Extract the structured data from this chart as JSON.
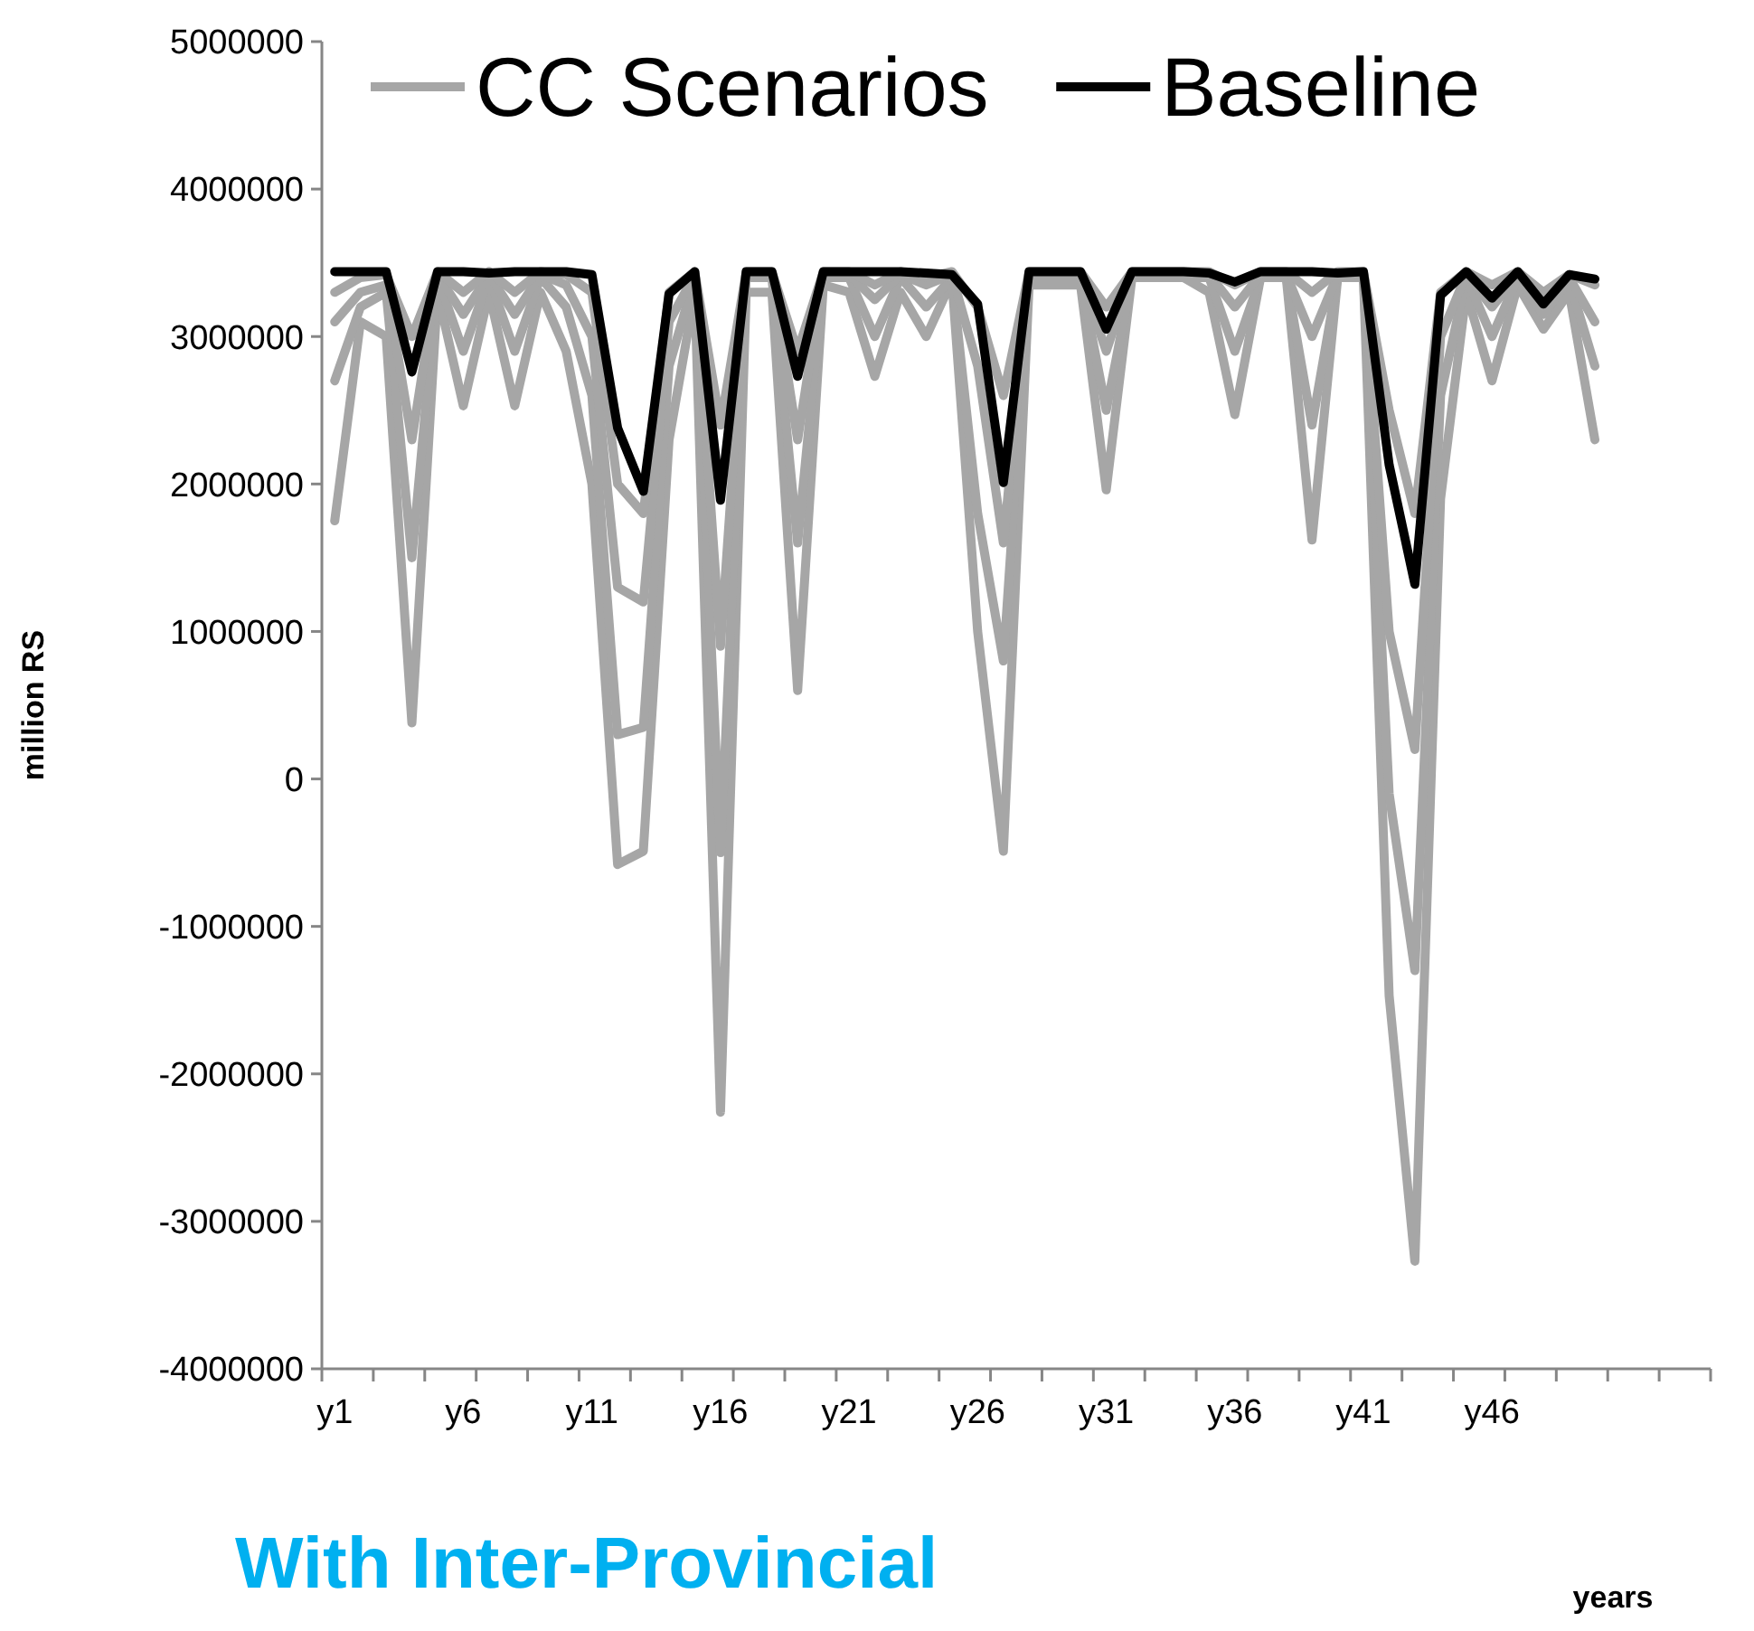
{
  "chart_data": {
    "type": "line",
    "ylabel": "million RS",
    "xlabel": "years",
    "annotations": [
      "With Inter-Provincial"
    ],
    "categories": [
      "y1",
      null,
      null,
      null,
      null,
      "y6",
      null,
      null,
      null,
      null,
      "y11",
      null,
      null,
      null,
      null,
      "y16",
      null,
      null,
      null,
      null,
      "y21",
      null,
      null,
      null,
      null,
      "y26",
      null,
      null,
      null,
      null,
      "y31",
      null,
      null,
      null,
      null,
      "y36",
      null,
      null,
      null,
      null,
      "y41",
      null,
      null,
      null,
      null,
      "y46",
      null,
      null,
      null,
      null,
      null,
      null,
      null,
      null
    ],
    "ylim": [
      -4000000,
      5000000
    ],
    "yticks": [
      -4000000,
      -3000000,
      -2000000,
      -1000000,
      0,
      1000000,
      2000000,
      3000000,
      4000000,
      5000000
    ],
    "grid": false,
    "legend": "top",
    "marker": "none",
    "line_style": "solid",
    "series": [
      {
        "name": "CC Scenarios",
        "color": "#a6a6a6",
        "values": [
          1750000,
          3100000,
          3000000,
          380000,
          3300000,
          2530000,
          3300000,
          2530000,
          3300000,
          2900000,
          2000000,
          -580000,
          -490000,
          2300000,
          3300000,
          -2260000,
          3300000,
          3300000,
          600000,
          3350000,
          3300000,
          2730000,
          3300000,
          3000000,
          3380000,
          1000000,
          -490000,
          3350000,
          3350000,
          3350000,
          1960000,
          3400000,
          3400000,
          3400000,
          3300000,
          2470000,
          3400000,
          3400000,
          1620000,
          3400000,
          3400000,
          -1470000,
          -3270000,
          1900000,
          3300000,
          2700000,
          3350000,
          3050000,
          3300000,
          2300000,
          null,
          null,
          null,
          null
        ]
      },
      {
        "color": "#a6a6a6",
        "values": [
          2700000,
          3200000,
          3300000,
          1500000,
          3400000,
          2900000,
          3400000,
          2900000,
          3400000,
          3200000,
          2600000,
          300000,
          350000,
          2800000,
          3400000,
          -500000,
          3400000,
          3400000,
          1600000,
          3400000,
          3400000,
          3000000,
          3400000,
          3200000,
          3400000,
          1800000,
          800000,
          3400000,
          3400000,
          3400000,
          2500000,
          3400000,
          3400000,
          3400000,
          3400000,
          2900000,
          3400000,
          3400000,
          2400000,
          3400000,
          3400000,
          -100000,
          -1300000,
          2600000,
          3400000,
          3000000,
          3400000,
          3150000,
          3380000,
          2800000,
          null,
          null,
          null,
          null
        ]
      },
      {
        "color": "#a6a6a6",
        "values": [
          3100000,
          3300000,
          3350000,
          2300000,
          3420000,
          3150000,
          3420000,
          3150000,
          3420000,
          3350000,
          3000000,
          1300000,
          1200000,
          3100000,
          3420000,
          900000,
          3420000,
          3420000,
          2300000,
          3420000,
          3420000,
          3250000,
          3420000,
          3350000,
          3420000,
          2800000,
          1600000,
          3420000,
          3420000,
          3420000,
          2900000,
          3420000,
          3420000,
          3420000,
          3420000,
          3200000,
          3420000,
          3420000,
          3000000,
          3420000,
          3420000,
          1000000,
          200000,
          3000000,
          3420000,
          3200000,
          3420000,
          3250000,
          3400000,
          3100000,
          null,
          null,
          null,
          null
        ]
      },
      {
        "color": "#a6a6a6",
        "values": [
          3300000,
          3400000,
          3420000,
          3000000,
          3440000,
          3300000,
          3440000,
          3300000,
          3440000,
          3420000,
          3300000,
          2000000,
          1800000,
          3300000,
          3440000,
          2400000,
          3440000,
          3440000,
          2900000,
          3440000,
          3440000,
          3350000,
          3440000,
          3400000,
          3440000,
          3200000,
          2600000,
          3440000,
          3440000,
          3440000,
          3200000,
          3440000,
          3440000,
          3440000,
          3440000,
          3350000,
          3440000,
          3440000,
          3300000,
          3440000,
          3440000,
          2500000,
          1800000,
          3300000,
          3440000,
          3350000,
          3440000,
          3300000,
          3420000,
          3350000,
          null,
          null,
          null,
          null
        ]
      },
      {
        "name": "Baseline",
        "color": "#000000",
        "values": [
          3440000,
          3440000,
          3440000,
          2760000,
          3440000,
          3440000,
          3430000,
          3440000,
          3440000,
          3440000,
          3420000,
          2380000,
          1950000,
          3290000,
          3440000,
          1890000,
          3440000,
          3440000,
          2730000,
          3440000,
          3440000,
          3440000,
          3440000,
          3430000,
          3420000,
          3220000,
          2010000,
          3440000,
          3440000,
          3440000,
          3050000,
          3440000,
          3440000,
          3440000,
          3430000,
          3370000,
          3440000,
          3440000,
          3440000,
          3430000,
          3440000,
          2130000,
          1320000,
          3280000,
          3440000,
          3260000,
          3440000,
          3220000,
          3420000,
          3390000,
          null,
          null,
          null,
          null
        ]
      }
    ]
  }
}
